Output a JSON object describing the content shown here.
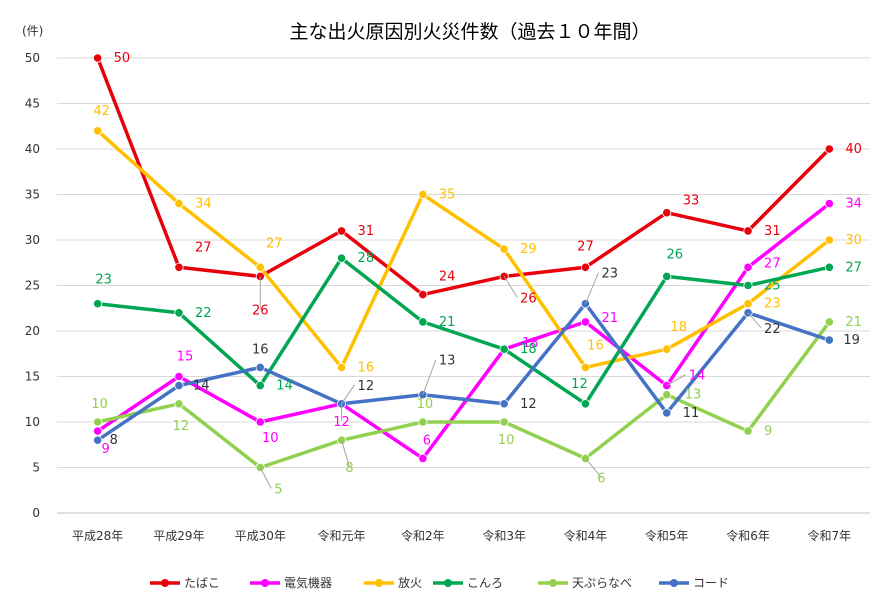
{
  "chart_data": {
    "type": "line",
    "title": "主な出火原因別火災件数（過去１０年間）",
    "unit_label": "(件)",
    "categories": [
      "平成28年",
      "平成29年",
      "平成30年",
      "令和元年",
      "令和2年",
      "令和3年",
      "令和4年",
      "令和5年",
      "令和6年",
      "令和7年"
    ],
    "ylim": [
      0,
      50
    ],
    "yticks": [
      "0",
      "5",
      "10",
      "15",
      "20",
      "25",
      "30",
      "35",
      "40",
      "45",
      "50"
    ],
    "grid": true,
    "legend_position": "bottom",
    "series": [
      {
        "name": "たばこ",
        "color": "#e8000b",
        "values": [
          50,
          27,
          26,
          31,
          24,
          26,
          27,
          33,
          31,
          40
        ]
      },
      {
        "name": "電気機器",
        "color": "#ff00ff",
        "values": [
          9,
          15,
          10,
          12,
          6,
          18,
          21,
          14,
          27,
          34
        ]
      },
      {
        "name": "放火",
        "color": "#ffc000",
        "values": [
          42,
          34,
          27,
          16,
          35,
          29,
          16,
          18,
          23,
          30
        ]
      },
      {
        "name": "こんろ",
        "color": "#00a651",
        "values": [
          23,
          22,
          14,
          28,
          21,
          18,
          12,
          26,
          25,
          27
        ]
      },
      {
        "name": "天ぷらなべ",
        "color": "#92d050",
        "values": [
          10,
          12,
          5,
          8,
          10,
          10,
          6,
          13,
          9,
          21
        ]
      },
      {
        "name": "コード",
        "color": "#4472c4",
        "values": [
          8,
          14,
          16,
          12,
          13,
          12,
          23,
          11,
          22,
          19
        ]
      }
    ]
  }
}
